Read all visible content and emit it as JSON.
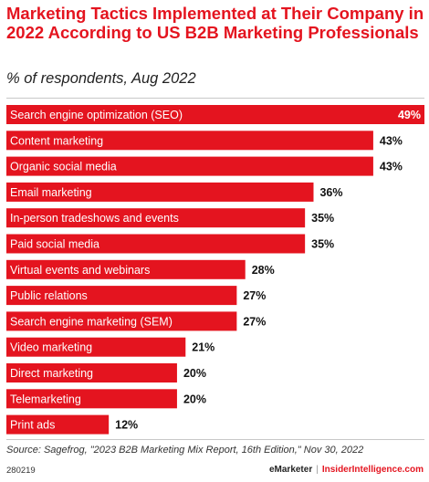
{
  "header": {
    "title": "Marketing Tactics Implemented at Their Company in 2022 According to US B2B Marketing Professionals",
    "subtitle": "% of respondents, Aug 2022"
  },
  "footer": {
    "source": "Source: Sagefrog, \"2023 B2B Marketing Mix Report, 16th Edition,\" Nov 30, 2022",
    "chart_id": "280219",
    "brand_left": "eMarketer",
    "brand_sep": "|",
    "brand_right": "InsiderIntelligence.com"
  },
  "colors": {
    "bar": "#e4141f",
    "title": "#e4141f"
  },
  "chart_data": {
    "type": "bar",
    "orientation": "horizontal",
    "title": "Marketing Tactics Implemented at Their Company in 2022 According to US B2B Marketing Professionals",
    "subtitle": "% of respondents, Aug 2022",
    "unit": "%",
    "xlim": [
      0,
      49
    ],
    "categories": [
      "Search engine optimization (SEO)",
      "Content marketing",
      "Organic social media",
      "Email marketing",
      "In-person tradeshows and events",
      "Paid social media",
      "Virtual events and webinars",
      "Public relations",
      "Search engine marketing (SEM)",
      "Video marketing",
      "Direct marketing",
      "Telemarketing",
      "Print ads"
    ],
    "values": [
      49,
      43,
      43,
      36,
      35,
      35,
      28,
      27,
      27,
      21,
      20,
      20,
      12
    ],
    "value_labels": [
      "49%",
      "43%",
      "43%",
      "36%",
      "35%",
      "35%",
      "28%",
      "27%",
      "27%",
      "21%",
      "20%",
      "20%",
      "12%"
    ]
  }
}
